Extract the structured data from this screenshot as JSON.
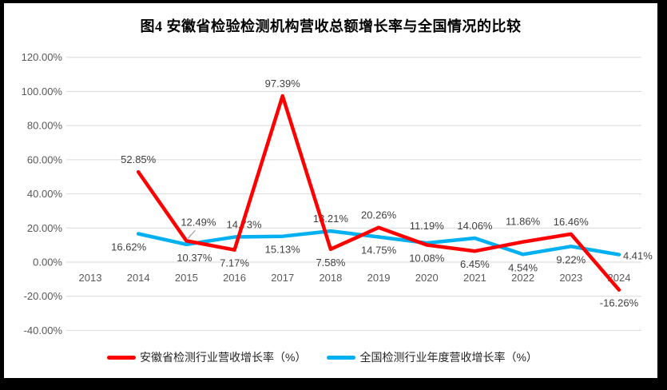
{
  "chart_data": {
    "type": "line",
    "title": "图4  安徽省检验检测机构营收总额增长率与全国情况的比较",
    "categories": [
      "2013",
      "2014",
      "2015",
      "2016",
      "2017",
      "2018",
      "2019",
      "2020",
      "2021",
      "2022",
      "2023",
      "2024"
    ],
    "series": [
      {
        "name": "安徽省检测行业营收增长率（%）",
        "color": "#FF0000",
        "values": [
          null,
          52.85,
          12.49,
          7.17,
          97.39,
          7.58,
          20.26,
          10.08,
          6.45,
          11.86,
          16.46,
          -16.26
        ],
        "label_pos": [
          null,
          "above",
          "callout",
          "below",
          "above",
          "below",
          "above",
          "below",
          "below",
          "above",
          "above",
          "below"
        ],
        "label_nudge": {
          "9": [
            0,
            -10
          ]
        }
      },
      {
        "name": "全国检测行业年度营收增长率（%）",
        "color": "#00B0F0",
        "values": [
          null,
          16.62,
          10.37,
          14.73,
          15.13,
          18.21,
          14.75,
          11.19,
          14.06,
          4.54,
          9.22,
          4.41
        ],
        "label_pos": [
          null,
          "below",
          "below",
          "above",
          "below",
          "above",
          "below",
          "above",
          "above",
          "below",
          "below",
          "right"
        ],
        "label_nudge": {
          "1": [
            -12,
            0
          ],
          "2": [
            10,
            0
          ],
          "3": [
            12,
            0
          ],
          "7": [
            0,
            -6
          ]
        }
      }
    ],
    "ylim": [
      -40,
      120
    ],
    "y_tick_step": 20,
    "y_ticks": [
      "120.00%",
      "100.00%",
      "80.00%",
      "60.00%",
      "40.00%",
      "20.00%",
      "0.00%",
      "-20.00%",
      "-40.00%"
    ],
    "label_format": "0.00%",
    "grid": true,
    "legend_position": "bottom",
    "colors": {
      "gridline": "#D9D9D9",
      "axis_text": "#595959",
      "data_label": "#404040",
      "leader_line": "#A6A6A6",
      "title_text": "#000000",
      "border": "#000000"
    }
  }
}
